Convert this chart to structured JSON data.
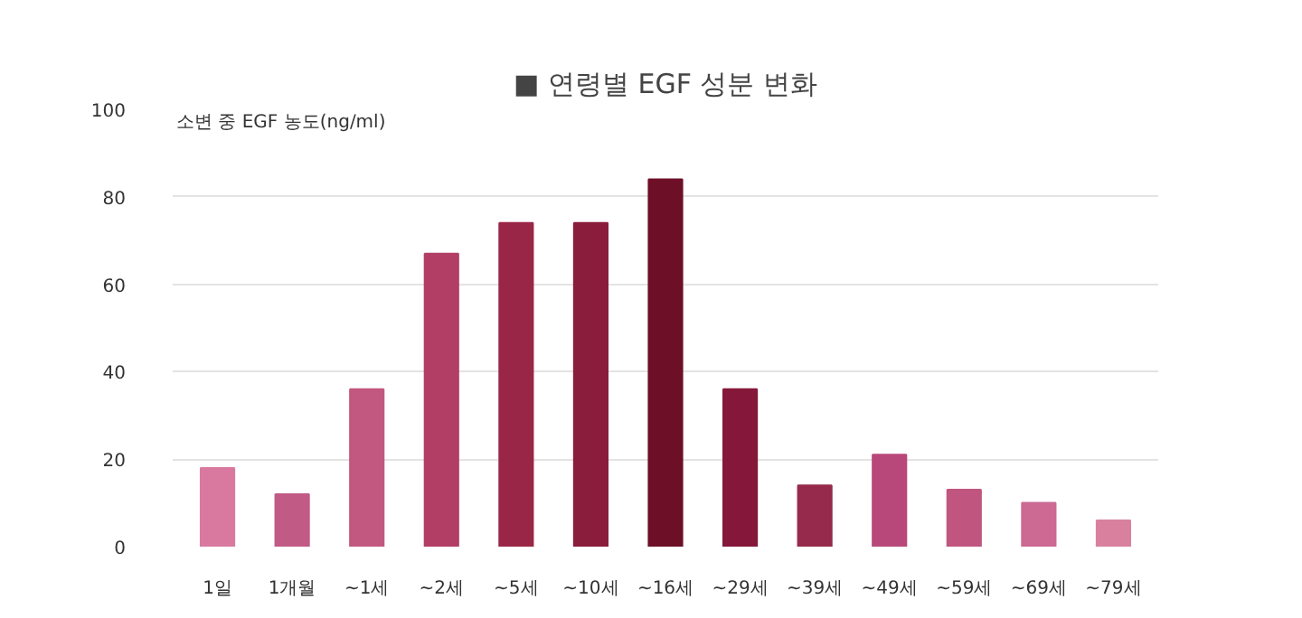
{
  "chart_data": {
    "type": "bar",
    "title": "■ 연령별 EGF 성분 변화",
    "ylabel": "소변 중 EGF 농도(ng/ml)",
    "categories": [
      "1일",
      "1개월",
      "~1세",
      "~2세",
      "~5세",
      "~10세",
      "~16세",
      "~29세",
      "~39세",
      "~49세",
      "~59세",
      "~69세",
      "~79세"
    ],
    "values": [
      18,
      12,
      36,
      67,
      74,
      74,
      84,
      36,
      14,
      21,
      13,
      10,
      6
    ],
    "colors": [
      "#d9799f",
      "#c25a86",
      "#c2577f",
      "#b23e66",
      "#9a2647",
      "#8a1c3c",
      "#6e0f28",
      "#85183a",
      "#962a4c",
      "#b9487a",
      "#c0567f",
      "#cc6a93",
      "#d9809f"
    ],
    "ylim": [
      0,
      100
    ],
    "yticks": [
      0,
      20,
      40,
      60,
      80,
      100
    ],
    "grid": "y"
  }
}
